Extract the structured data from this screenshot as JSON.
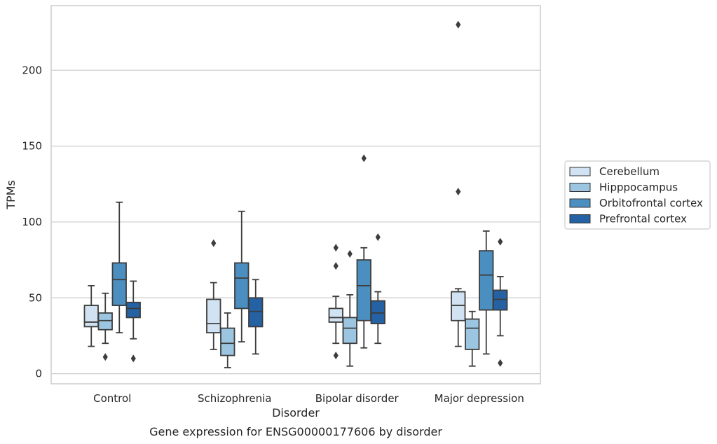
{
  "chart_data": {
    "type": "box",
    "title": "",
    "caption": "Gene expression for ENSG00000177606 by disorder",
    "xlabel": "Disorder",
    "ylabel": "TPMs",
    "ylim": [
      -6,
      235
    ],
    "yticks": [
      0,
      50,
      100,
      150,
      200
    ],
    "grid": "horizontal",
    "legend_position": "right",
    "categories": [
      "Control",
      "Schizophrenia",
      "Bipolar disorder",
      "Major depression"
    ],
    "series": [
      {
        "name": "Cerebellum",
        "color": "#d1e3f2",
        "boxes": [
          {
            "whisker_low": 18,
            "q1": 31,
            "median": 34,
            "q3": 45,
            "whisker_high": 58,
            "outliers": []
          },
          {
            "whisker_low": 16,
            "q1": 27,
            "median": 33,
            "q3": 49,
            "whisker_high": 60,
            "outliers": [
              86
            ]
          },
          {
            "whisker_low": 20,
            "q1": 34,
            "median": 37,
            "q3": 43,
            "whisker_high": 51,
            "outliers": [
              12,
              71,
              83
            ]
          },
          {
            "whisker_low": 18,
            "q1": 35,
            "median": 45,
            "q3": 54,
            "whisker_high": 56,
            "outliers": [
              120,
              230
            ]
          }
        ]
      },
      {
        "name": "Hipppocampus",
        "color": "#9bc5e0",
        "boxes": [
          {
            "whisker_low": 20,
            "q1": 29,
            "median": 35,
            "q3": 40,
            "whisker_high": 53,
            "outliers": [
              11
            ]
          },
          {
            "whisker_low": 4,
            "q1": 12,
            "median": 20,
            "q3": 30,
            "whisker_high": 40,
            "outliers": []
          },
          {
            "whisker_low": 5,
            "q1": 20,
            "median": 30,
            "q3": 37,
            "whisker_high": 52,
            "outliers": [
              79
            ]
          },
          {
            "whisker_low": 5,
            "q1": 16,
            "median": 30,
            "q3": 36,
            "whisker_high": 41,
            "outliers": []
          }
        ]
      },
      {
        "name": "Orbitofrontal cortex",
        "color": "#4b8fc1",
        "boxes": [
          {
            "whisker_low": 27,
            "q1": 45,
            "median": 62,
            "q3": 73,
            "whisker_high": 113,
            "outliers": []
          },
          {
            "whisker_low": 21,
            "q1": 43,
            "median": 63,
            "q3": 73,
            "whisker_high": 107,
            "outliers": []
          },
          {
            "whisker_low": 17,
            "q1": 35,
            "median": 58,
            "q3": 75,
            "whisker_high": 83,
            "outliers": [
              142
            ]
          },
          {
            "whisker_low": 13,
            "q1": 42,
            "median": 65,
            "q3": 81,
            "whisker_high": 94,
            "outliers": []
          }
        ]
      },
      {
        "name": "Prefrontal cortex",
        "color": "#2462a4",
        "boxes": [
          {
            "whisker_low": 23,
            "q1": 37,
            "median": 43,
            "q3": 47,
            "whisker_high": 61,
            "outliers": [
              10
            ]
          },
          {
            "whisker_low": 13,
            "q1": 31,
            "median": 41,
            "q3": 50,
            "whisker_high": 62,
            "outliers": []
          },
          {
            "whisker_low": 20,
            "q1": 33,
            "median": 40,
            "q3": 48,
            "whisker_high": 54,
            "outliers": [
              90
            ]
          },
          {
            "whisker_low": 25,
            "q1": 42,
            "median": 49,
            "q3": 55,
            "whisker_high": 64,
            "outliers": [
              7,
              87
            ]
          }
        ]
      }
    ]
  }
}
